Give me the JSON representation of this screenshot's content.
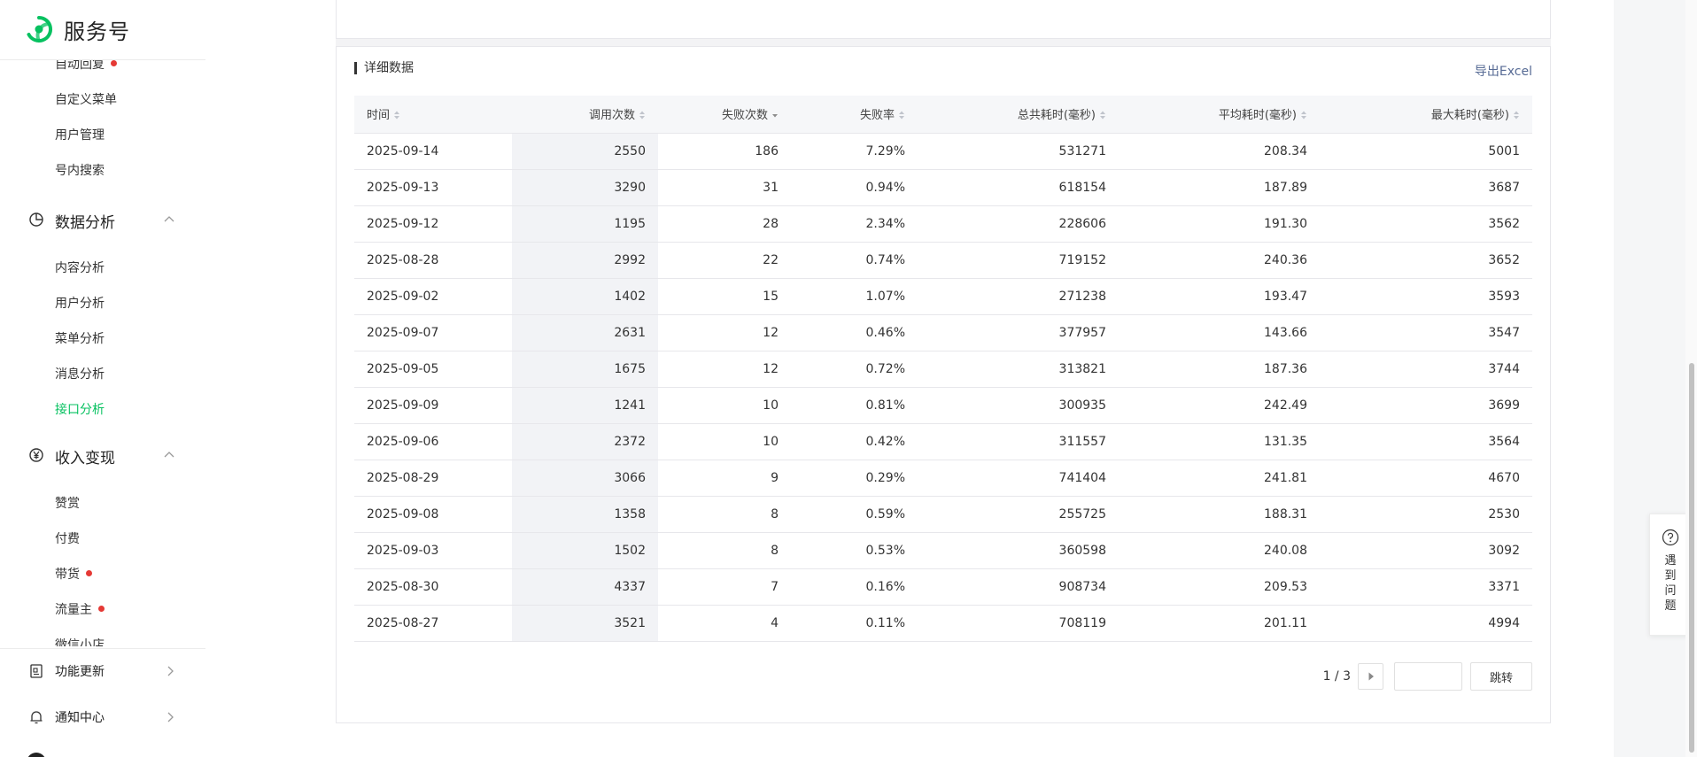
{
  "brand": {
    "name": "服务号",
    "logo_icon": "wechat-service-logo-icon",
    "logo_color": "#07c160"
  },
  "sidebar": {
    "partial_top_item": {
      "label": "自动回复",
      "badge_dot": true
    },
    "items_top": [
      {
        "label": "自定义菜单"
      },
      {
        "label": "用户管理"
      },
      {
        "label": "号内搜索"
      }
    ],
    "groups": [
      {
        "label": "数据分析",
        "icon": "pie-chart-icon",
        "expanded": true,
        "items": [
          {
            "label": "内容分析"
          },
          {
            "label": "用户分析"
          },
          {
            "label": "菜单分析"
          },
          {
            "label": "消息分析"
          },
          {
            "label": "接口分析",
            "active": true
          }
        ]
      },
      {
        "label": "收入变现",
        "icon": "yuan-circle-icon",
        "expanded": true,
        "items": [
          {
            "label": "赞赏"
          },
          {
            "label": "付费"
          },
          {
            "label": "带货",
            "badge_dot": true
          },
          {
            "label": "流量主",
            "badge_dot": true
          },
          {
            "label": "微信小店"
          }
        ]
      }
    ],
    "bottom": [
      {
        "label": "功能更新",
        "icon": "document-icon"
      },
      {
        "label": "通知中心",
        "icon": "bell-icon"
      }
    ],
    "active_color": "#07c160",
    "badge_color": "#e53935"
  },
  "detail": {
    "title": "详细数据",
    "export_label": "导出Excel",
    "columns": [
      "时间",
      "调用次数",
      "失败次数",
      "失败率",
      "总共耗时(毫秒)",
      "平均耗时(毫秒)",
      "最大耗时(毫秒)"
    ],
    "sorted_column": "失败次数",
    "sort_direction": "desc",
    "rows": [
      [
        "2025-09-14",
        "2550",
        "186",
        "7.29%",
        "531271",
        "208.34",
        "5001"
      ],
      [
        "2025-09-13",
        "3290",
        "31",
        "0.94%",
        "618154",
        "187.89",
        "3687"
      ],
      [
        "2025-09-12",
        "1195",
        "28",
        "2.34%",
        "228606",
        "191.30",
        "3562"
      ],
      [
        "2025-08-28",
        "2992",
        "22",
        "0.74%",
        "719152",
        "240.36",
        "3652"
      ],
      [
        "2025-09-02",
        "1402",
        "15",
        "1.07%",
        "271238",
        "193.47",
        "3593"
      ],
      [
        "2025-09-07",
        "2631",
        "12",
        "0.46%",
        "377957",
        "143.66",
        "3547"
      ],
      [
        "2025-09-05",
        "1675",
        "12",
        "0.72%",
        "313821",
        "187.36",
        "3744"
      ],
      [
        "2025-09-09",
        "1241",
        "10",
        "0.81%",
        "300935",
        "242.49",
        "3699"
      ],
      [
        "2025-09-06",
        "2372",
        "10",
        "0.42%",
        "311557",
        "131.35",
        "3564"
      ],
      [
        "2025-08-29",
        "3066",
        "9",
        "0.29%",
        "741404",
        "241.81",
        "4670"
      ],
      [
        "2025-09-08",
        "1358",
        "8",
        "0.59%",
        "255725",
        "188.31",
        "2530"
      ],
      [
        "2025-09-03",
        "1502",
        "8",
        "0.53%",
        "360598",
        "240.08",
        "3092"
      ],
      [
        "2025-08-30",
        "4337",
        "7",
        "0.16%",
        "908734",
        "209.53",
        "3371"
      ],
      [
        "2025-08-27",
        "3521",
        "4",
        "0.11%",
        "708119",
        "201.11",
        "4994"
      ]
    ],
    "pagination": {
      "info": "1 / 3",
      "page_input_value": "",
      "jump_label": "跳转"
    },
    "link_color": "#576b95"
  },
  "help": {
    "label": "遇到问题",
    "icon": "question-circle-icon"
  }
}
